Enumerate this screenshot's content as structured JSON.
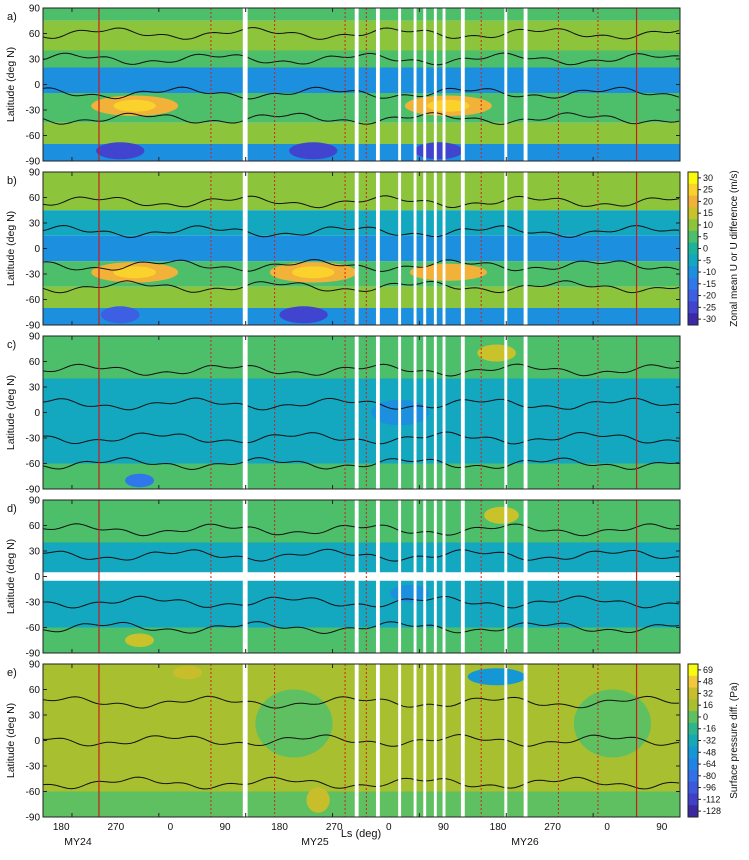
{
  "figure": {
    "xlabel": "Ls (deg)",
    "x_ticks": [
      "180",
      "270",
      "0",
      "90",
      "180",
      "270",
      "0",
      "90",
      "180",
      "270",
      "0",
      "90"
    ],
    "year_labels": [
      "MY24",
      "MY25",
      "MY26"
    ]
  },
  "colorbars": [
    {
      "label": "Zonal mean U or U difference (m/s)",
      "ticks": [
        "30",
        "25",
        "20",
        "15",
        "10",
        "5",
        "0",
        "-5",
        "-10",
        "-15",
        "-20",
        "-25",
        "-30"
      ],
      "colors": [
        "#f9fb0e",
        "#fbd22b",
        "#f2b23a",
        "#c9c22b",
        "#8cc43c",
        "#4dbe6a",
        "#1bb49a",
        "#13a7c0",
        "#1c8fdf",
        "#2f77eb",
        "#3c5fe4",
        "#4044cf",
        "#3a2aa8"
      ]
    },
    {
      "label": "Surface pressure diff. (Pa)",
      "ticks": [
        "69",
        "48",
        "32",
        "16",
        "0",
        "-16",
        "-32",
        "-48",
        "-64",
        "-80",
        "-96",
        "-112",
        "-128"
      ],
      "colors": [
        "#f9fb0e",
        "#f2c93a",
        "#c8be2c",
        "#a8bf30",
        "#5ec060",
        "#2fb58e",
        "#15a9b6",
        "#1597d6",
        "#2183e6",
        "#3070ea",
        "#3b58de",
        "#403fc8",
        "#3b289f"
      ]
    }
  ],
  "chart_data": [
    {
      "type": "heatmap",
      "panel": "a)",
      "ylabel": "Latitude (deg N)",
      "y_ticks": [
        "90",
        "60",
        "30",
        "0",
        "-30",
        "-60",
        "-90"
      ],
      "ylim": [
        -90,
        90
      ],
      "xlim": [
        150,
        810
      ],
      "bands": [
        {
          "lat": [
            75,
            90
          ],
          "level": 5
        },
        {
          "lat": [
            40,
            75
          ],
          "level": 10
        },
        {
          "lat": [
            20,
            40
          ],
          "level": 5
        },
        {
          "lat": [
            -10,
            20
          ],
          "level": -10
        },
        {
          "lat": [
            -45,
            -10
          ],
          "level": 5
        },
        {
          "lat": [
            -70,
            -45
          ],
          "level": 10
        },
        {
          "lat": [
            -90,
            -70
          ],
          "level": -10
        }
      ],
      "blobs": [
        {
          "x": 245,
          "lat": -25,
          "w": 45,
          "h": 12,
          "level": 20
        },
        {
          "x": 245,
          "lat": -25,
          "w": 22,
          "h": 7,
          "level": 25
        },
        {
          "x": 570,
          "lat": -25,
          "w": 45,
          "h": 12,
          "level": 20
        },
        {
          "x": 570,
          "lat": -25,
          "w": 22,
          "h": 7,
          "level": 25
        },
        {
          "x": 230,
          "lat": -78,
          "w": 25,
          "h": 10,
          "level": -25
        },
        {
          "x": 560,
          "lat": -78,
          "w": 25,
          "h": 10,
          "level": -25
        },
        {
          "x": 430,
          "lat": -78,
          "w": 25,
          "h": 10,
          "level": -25
        }
      ],
      "contour_lats": [
        60,
        30,
        -10,
        -40
      ],
      "gap_lats": []
    },
    {
      "type": "heatmap",
      "panel": "b)",
      "ylabel": "Latitude (deg N)",
      "y_ticks": [
        "90",
        "60",
        "30",
        "0",
        "-30",
        "-60",
        "-90"
      ],
      "ylim": [
        -90,
        90
      ],
      "xlim": [
        150,
        810
      ],
      "bands": [
        {
          "lat": [
            45,
            90
          ],
          "level": 10
        },
        {
          "lat": [
            15,
            45
          ],
          "level": -5
        },
        {
          "lat": [
            -15,
            15
          ],
          "level": -10
        },
        {
          "lat": [
            -45,
            -15
          ],
          "level": 5
        },
        {
          "lat": [
            -70,
            -45
          ],
          "level": 10
        },
        {
          "lat": [
            -90,
            -70
          ],
          "level": -10
        }
      ],
      "blobs": [
        {
          "x": 245,
          "lat": -28,
          "w": 45,
          "h": 12,
          "level": 20
        },
        {
          "x": 245,
          "lat": -28,
          "w": 22,
          "h": 7,
          "level": 25
        },
        {
          "x": 430,
          "lat": -28,
          "w": 45,
          "h": 12,
          "level": 20
        },
        {
          "x": 430,
          "lat": -28,
          "w": 22,
          "h": 7,
          "level": 25
        },
        {
          "x": 570,
          "lat": -28,
          "w": 40,
          "h": 10,
          "level": 20
        },
        {
          "x": 420,
          "lat": -78,
          "w": 25,
          "h": 10,
          "level": -25
        },
        {
          "x": 230,
          "lat": -78,
          "w": 20,
          "h": 10,
          "level": -20
        }
      ],
      "contour_lats": [
        55,
        20,
        -20,
        -45
      ],
      "gap_lats": []
    },
    {
      "type": "heatmap",
      "panel": "c)",
      "ylabel": "Latitude (deg N)",
      "y_ticks": [
        "90",
        "60",
        "30",
        "0",
        "-30",
        "-60",
        "-90"
      ],
      "ylim": [
        -90,
        90
      ],
      "xlim": [
        150,
        810
      ],
      "bands": [
        {
          "lat": [
            40,
            90
          ],
          "level": 5
        },
        {
          "lat": [
            -60,
            40
          ],
          "level": -5
        },
        {
          "lat": [
            -90,
            -60
          ],
          "level": 5
        }
      ],
      "blobs": [
        {
          "x": 620,
          "lat": 70,
          "w": 20,
          "h": 10,
          "level": 15
        },
        {
          "x": 520,
          "lat": 0,
          "w": 30,
          "h": 15,
          "level": -10
        },
        {
          "x": 250,
          "lat": -80,
          "w": 15,
          "h": 8,
          "level": -15
        }
      ],
      "contour_lats": [
        50,
        10,
        -30,
        -60
      ],
      "gap_lats": []
    },
    {
      "type": "heatmap",
      "panel": "d)",
      "ylabel": "Latitude (deg N)",
      "y_ticks": [
        "90",
        "60",
        "30",
        "0",
        "-30",
        "-60",
        "-90"
      ],
      "ylim": [
        -90,
        90
      ],
      "xlim": [
        150,
        810
      ],
      "bands": [
        {
          "lat": [
            40,
            90
          ],
          "level": 5
        },
        {
          "lat": [
            -60,
            40
          ],
          "level": -5
        },
        {
          "lat": [
            -90,
            -60
          ],
          "level": 5
        }
      ],
      "blobs": [
        {
          "x": 625,
          "lat": 72,
          "w": 18,
          "h": 10,
          "level": 15
        },
        {
          "x": 250,
          "lat": -75,
          "w": 15,
          "h": 8,
          "level": 15
        },
        {
          "x": 530,
          "lat": -20,
          "w": 20,
          "h": 10,
          "level": -10
        }
      ],
      "contour_lats": [
        55,
        25,
        -30,
        -60
      ],
      "gap_lats": [
        -5,
        5
      ]
    },
    {
      "type": "heatmap",
      "panel": "e)",
      "ylabel": "Latitude (deg N)",
      "y_ticks": [
        "90",
        "60",
        "30",
        "0",
        "-30",
        "-60",
        "-90"
      ],
      "ylim": [
        -90,
        90
      ],
      "xlim": [
        150,
        810
      ],
      "bands": [
        {
          "lat": [
            -60,
            90
          ],
          "level": 16
        },
        {
          "lat": [
            -90,
            -60
          ],
          "level": 0
        }
      ],
      "blobs": [
        {
          "x": 410,
          "lat": 20,
          "w": 40,
          "h": 40,
          "level": 0
        },
        {
          "x": 740,
          "lat": 20,
          "w": 40,
          "h": 40,
          "level": 0
        },
        {
          "x": 620,
          "lat": 75,
          "w": 30,
          "h": 10,
          "level": -48
        },
        {
          "x": 300,
          "lat": 80,
          "w": 15,
          "h": 8,
          "level": 32
        },
        {
          "x": 435,
          "lat": -70,
          "w": 12,
          "h": 15,
          "level": 32
        }
      ],
      "contour_lats": [
        45,
        0,
        -50
      ],
      "gap_lats": []
    }
  ],
  "time_markers": {
    "solid_red": [
      208,
      765
    ],
    "dotted_red": [
      324,
      390,
      463,
      485,
      604,
      684,
      725
    ],
    "data_gaps": [
      {
        "from": 357,
        "to": 362
      },
      {
        "from": 473,
        "to": 477
      },
      {
        "from": 495,
        "to": 499
      },
      {
        "from": 518,
        "to": 521
      },
      {
        "from": 534,
        "to": 537
      },
      {
        "from": 544,
        "to": 547
      },
      {
        "from": 555,
        "to": 558
      },
      {
        "from": 564,
        "to": 567
      },
      {
        "from": 583,
        "to": 587
      },
      {
        "from": 628,
        "to": 631
      },
      {
        "from": 648,
        "to": 652
      }
    ]
  }
}
